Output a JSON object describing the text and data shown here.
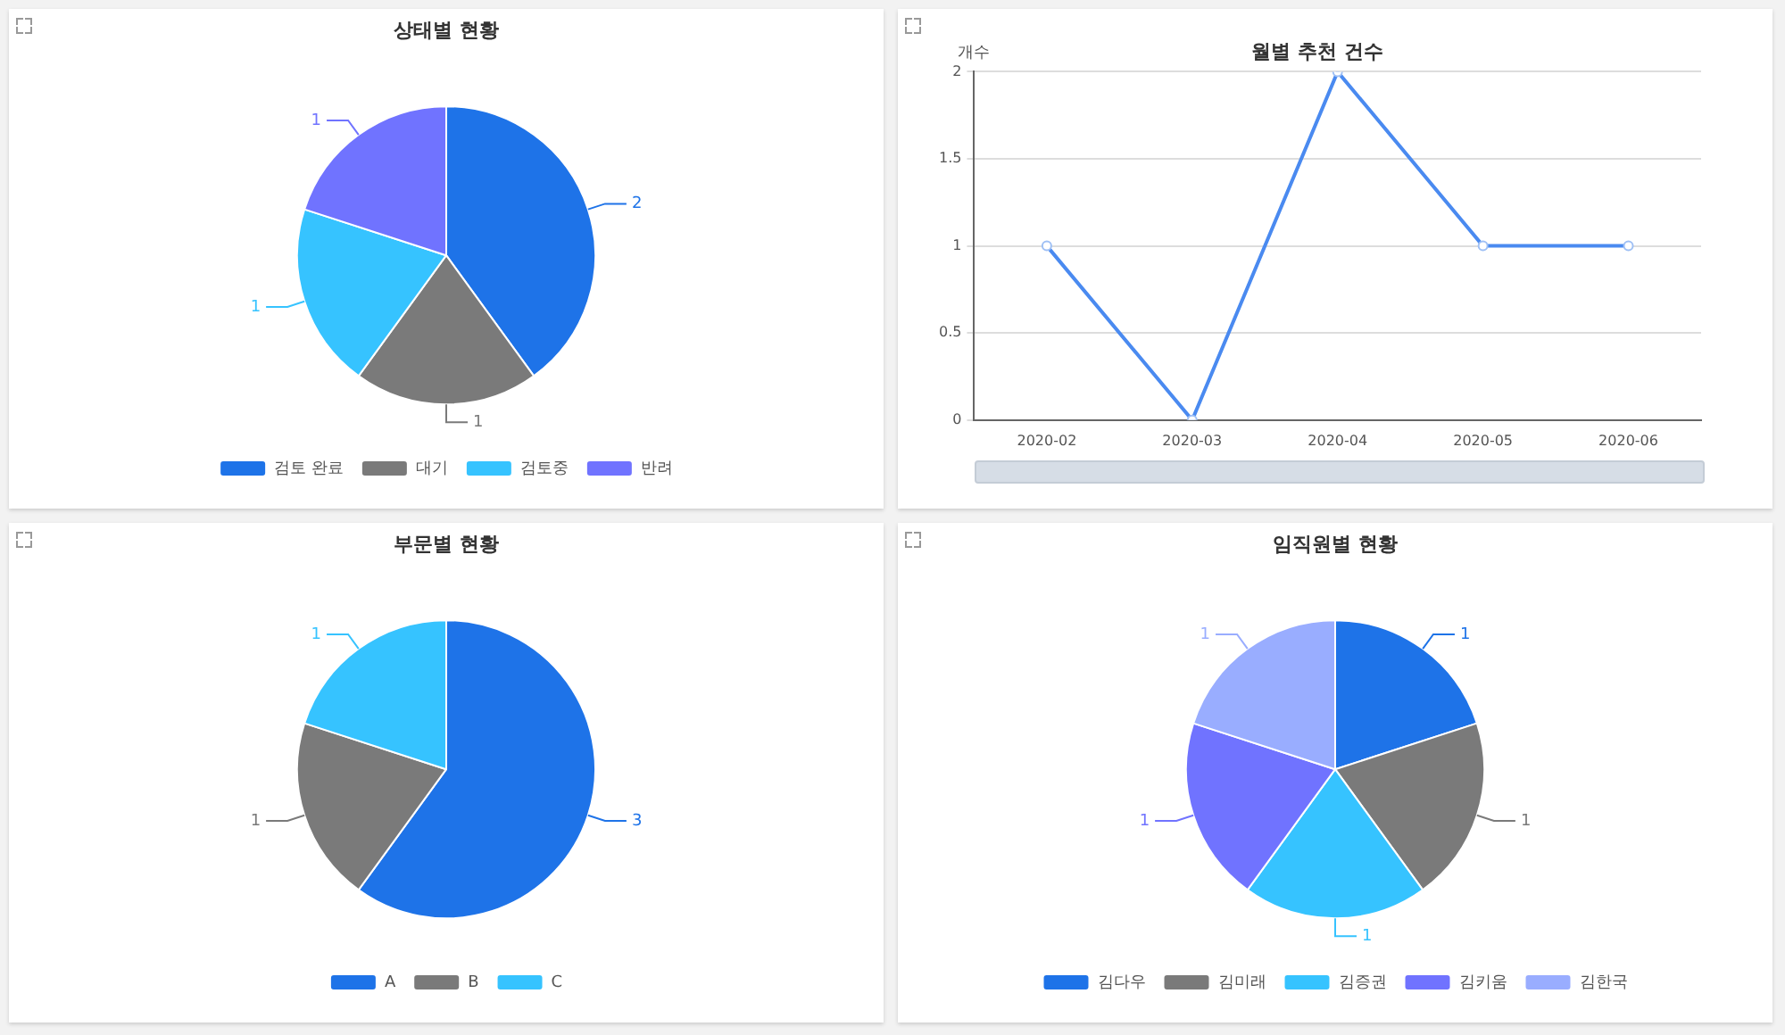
{
  "chart_data": [
    {
      "type": "pie",
      "title": "상태별 현황",
      "categories": [
        "검토 완료",
        "대기",
        "검토중",
        "반려"
      ],
      "values": [
        2,
        1,
        1,
        1
      ],
      "colors": [
        "#1e73e8",
        "#7a7a7a",
        "#36c3ff",
        "#7073ff"
      ],
      "data_labels": true,
      "legend": "bottom"
    },
    {
      "type": "line",
      "title": "월별 추천 건수",
      "ylabel": "개수",
      "categories": [
        "2020-02",
        "2020-03",
        "2020-04",
        "2020-05",
        "2020-06"
      ],
      "series": [
        {
          "color": "#4a8af0",
          "values": [
            1,
            0,
            2,
            1,
            1
          ]
        }
      ],
      "ylim": [
        0,
        2
      ],
      "yticks": [
        0,
        0.5,
        1,
        1.5,
        2
      ],
      "grid": "y",
      "marker": "circle",
      "line_style": "solid"
    },
    {
      "type": "pie",
      "title": "부문별 현황",
      "categories": [
        "A",
        "B",
        "C"
      ],
      "values": [
        3,
        1,
        1
      ],
      "colors": [
        "#1e73e8",
        "#7a7a7a",
        "#36c3ff"
      ],
      "data_labels": true,
      "legend": "bottom"
    },
    {
      "type": "pie",
      "title": "임직원별 현황",
      "categories": [
        "김다우",
        "김미래",
        "김증권",
        "김키움",
        "김한국"
      ],
      "values": [
        1,
        1,
        1,
        1,
        1
      ],
      "colors": [
        "#1e73e8",
        "#7a7a7a",
        "#36c3ff",
        "#7073ff",
        "#99adff"
      ],
      "data_labels": true,
      "legend": "bottom"
    }
  ]
}
